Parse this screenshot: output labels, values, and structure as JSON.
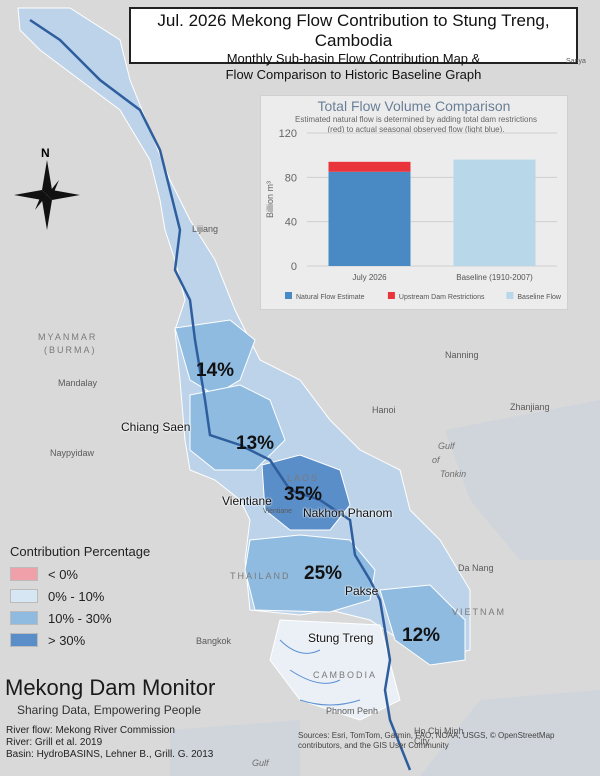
{
  "title": {
    "main": "Jul. 2026 Mekong Flow Contribution to Stung Treng, Cambodia",
    "sub1": "Monthly Sub-basin Flow Contribution Map &",
    "sub2": "Flow Comparison to Historic Baseline Graph"
  },
  "compass_label": "N",
  "chart_data": {
    "type": "bar",
    "title": "Total Flow Volume Comparison",
    "subtitle": "Estimated natural flow is determined by adding total dam restrictions (red) to actual seasonal observed flow (light blue).",
    "categories": [
      "July 2026",
      "Baseline (1910-2007)"
    ],
    "series": [
      {
        "name": "Natural Flow Estimate",
        "values": [
          85,
          0
        ],
        "color": "#4a8ac4"
      },
      {
        "name": "Upstream Dam Restrictions",
        "values": [
          9,
          0
        ],
        "color": "#e8343a"
      },
      {
        "name": "Baseline Flow",
        "values": [
          0,
          96
        ],
        "color": "#b8d8ea"
      }
    ],
    "ylabel": "Billion m³",
    "ylim": [
      0,
      120
    ],
    "yticks": [
      "0",
      "40",
      "80",
      "120"
    ],
    "grid": true,
    "legend": "bottom"
  },
  "legend": {
    "title": "Contribution Percentage",
    "items": [
      {
        "label": "< 0%",
        "color": "#f0a0a8"
      },
      {
        "label": "0% - 10%",
        "color": "#d6e6f2"
      },
      {
        "label": "10% - 30%",
        "color": "#8fbbe0"
      },
      {
        "label": "> 30%",
        "color": "#5a8ec8"
      }
    ]
  },
  "percentages": {
    "p1": "14%",
    "p2": "13%",
    "p3": "35%",
    "p4": "25%",
    "p5": "12%"
  },
  "stations": {
    "s1": "Chiang Saen",
    "s2": "Vientiane",
    "s3": "Nakhon Phanom",
    "s4": "Pakse",
    "s5": "Stung Treng"
  },
  "places": {
    "lijiang": "Lijiang",
    "mandalay": "Mandalay",
    "naypyidaw": "Naypyidaw",
    "nanning": "Nanning",
    "hanoi": "Hanoi",
    "zhanjiang": "Zhanjiang",
    "danang": "Da Nang",
    "bangkok": "Bangkok",
    "vientiane_small": "Vientiane",
    "phnompenh": "Phnom Penh",
    "hochiminh": "Ho Chi Minh City",
    "sanya": "Sanya"
  },
  "countries": {
    "myanmar": "MYANMAR",
    "burma": "(BURMA)",
    "laos": "LAOS",
    "thailand": "THAILAND",
    "vietnam": "VIETNAM",
    "cambodia": "CAMBODIA"
  },
  "seas": {
    "gulf": "Gulf",
    "of": "of",
    "tonkin": "Tonkin",
    "gulf2": "Gulf"
  },
  "brand": {
    "name": "Mekong Dam Monitor",
    "tagline": "Sharing Data, Empowering People"
  },
  "credits": {
    "line1": "River flow: Mekong River Commission",
    "line2": "River: Grill et al. 2019",
    "line3": "Basin: HydroBASINS, Lehner B., Grill. G. 2013"
  },
  "sources": "Sources: Esri, TomTom, Garmin, FAO, NOAA, USGS, © OpenStreetMap contributors, and the GIS User Community"
}
